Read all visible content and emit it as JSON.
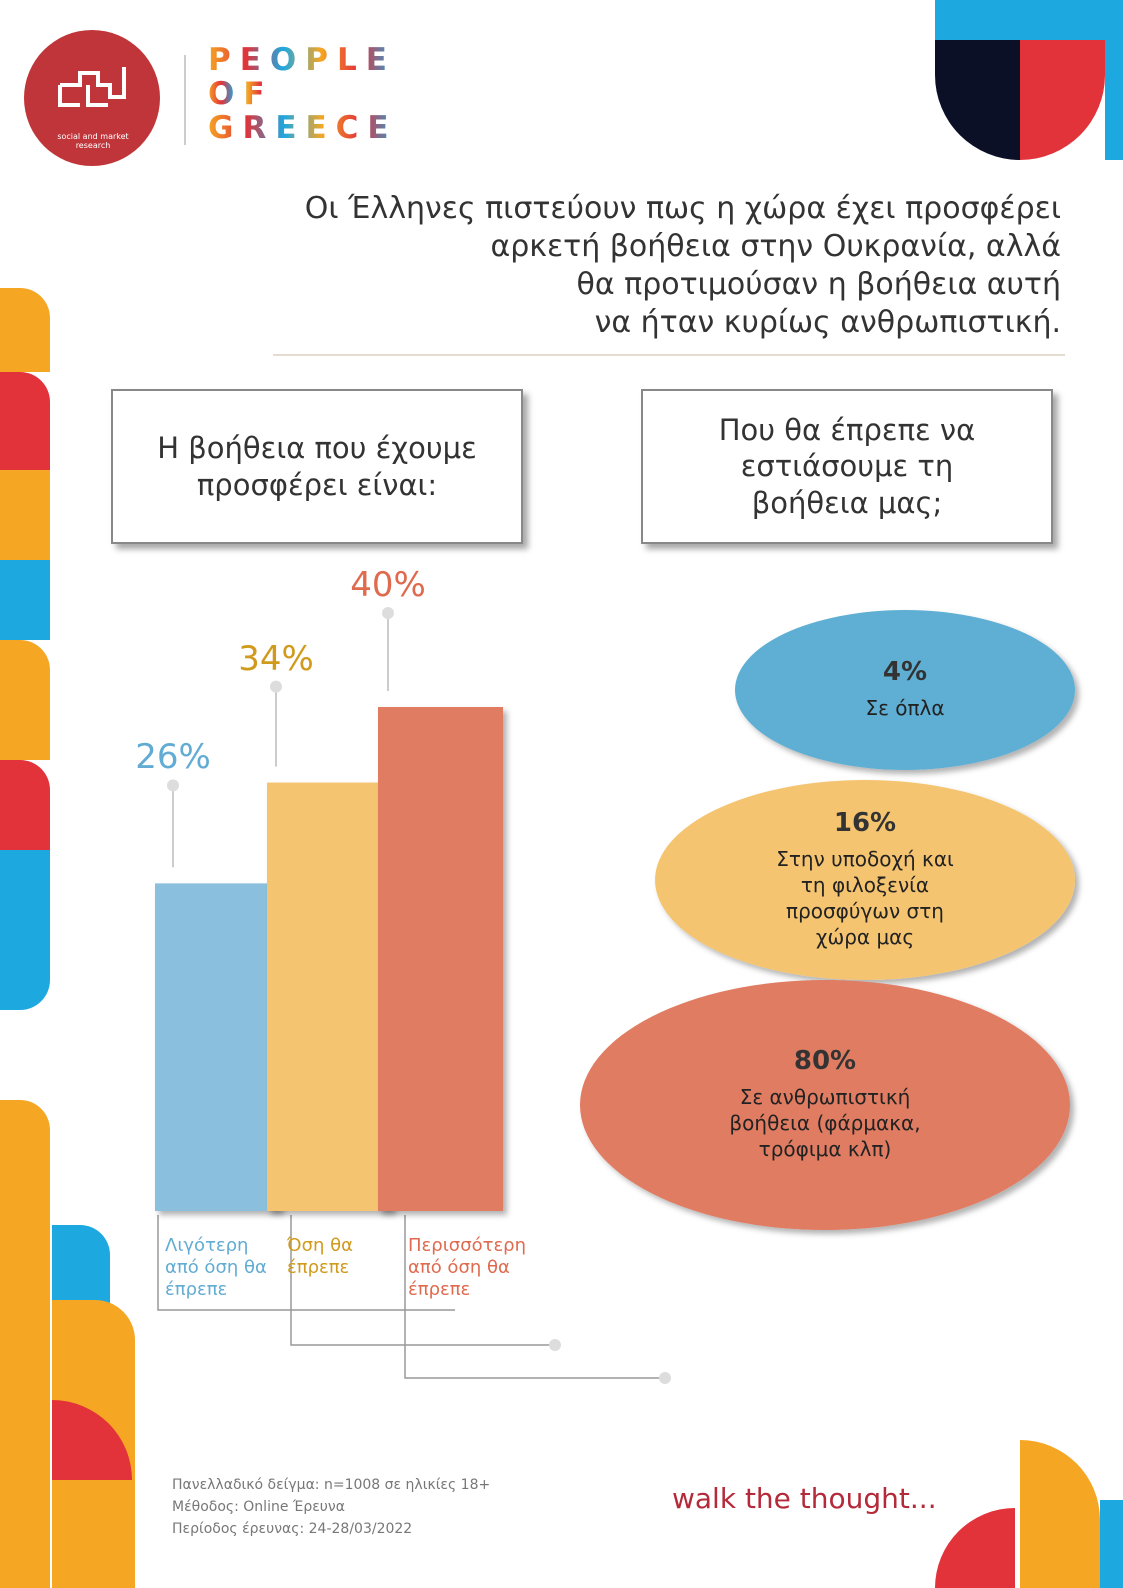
{
  "header": {
    "logo_text": "social and market research",
    "brand": [
      "PEOPLE",
      "OF",
      "GREECE"
    ]
  },
  "title": [
    "Οι Έλληνες πιστεύουν πως η χώρα έχει προσφέρει",
    "αρκετή βοήθεια στην Ουκρανία, αλλά",
    "θα προτιμούσαν η βοήθεια αυτή",
    "να ήταν κυρίως ανθρωπιστική."
  ],
  "chart_data": [
    {
      "type": "bar",
      "title": "Η βοήθεια που έχουμε προσφέρει είναι:",
      "categories": [
        "Λιγότερη από όση θα έπρεπε",
        "Όση θα έπρεπε",
        "Περισσότερη από όση θα έπρεπε"
      ],
      "values": [
        26,
        34,
        40
      ],
      "value_labels": [
        "26%",
        "34%",
        "40%"
      ],
      "colors": [
        "#8ac0dd",
        "#f5c46f",
        "#e07b62"
      ],
      "label_colors": [
        "#62acd3",
        "#d09a1c",
        "#df6a4e"
      ]
    },
    {
      "type": "bubble",
      "title": "Που θα έπρεπε να εστιάσουμε τη βοήθεια μας;",
      "categories": [
        "Σε όπλα",
        "Στην υποδοχή και τη φιλοξενία προσφύγων στη χώρα μας",
        "Σε ανθρωπιστική βοήθεια (φάρμακα, τρόφιμα κλπ)"
      ],
      "values": [
        4,
        16,
        80
      ],
      "value_labels": [
        "4%",
        "16%",
        "80%"
      ],
      "colors": [
        "#5faed3",
        "#f5c46f",
        "#e07b62"
      ]
    }
  ],
  "footer": {
    "notes": [
      "Πανελλαδικό δείγμα: n=1008 σε ηλικίες 18+",
      "Μέθοδος: Online Έρευνα",
      "Περίοδος έρευνας: 24-28/03/2022"
    ],
    "tagline": "walk the thought..."
  }
}
